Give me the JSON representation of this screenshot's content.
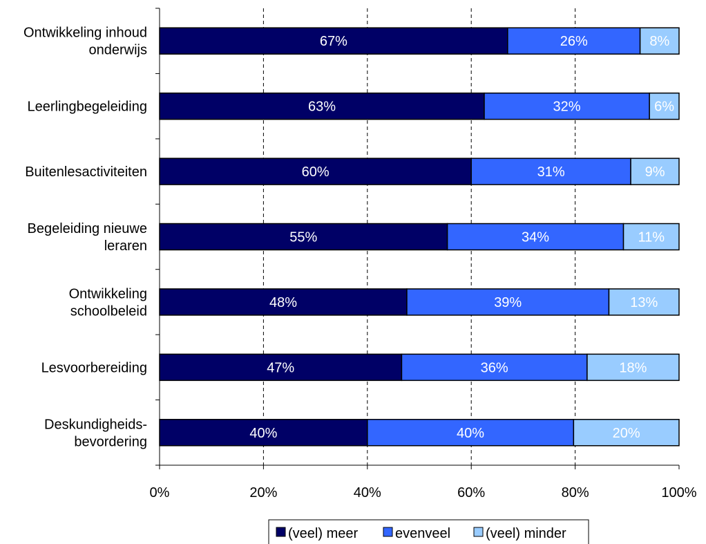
{
  "chart_data": {
    "type": "bar",
    "orientation": "horizontal",
    "stacked": "percent",
    "categories": [
      [
        "Ontwikkeling inhoud",
        "onderwijs"
      ],
      [
        "Leerlingbegeleiding"
      ],
      [
        "Buitenlesactiviteiten"
      ],
      [
        "Begeleiding nieuwe",
        "leraren"
      ],
      [
        "Ontwikkeling",
        "schoolbeleid"
      ],
      [
        "Lesvoorbereiding"
      ],
      [
        "Deskundigheids-",
        "bevordering"
      ]
    ],
    "series": [
      {
        "name": "(veel) meer",
        "color": "#000066",
        "values": [
          67,
          63,
          60,
          55,
          48,
          47,
          40
        ]
      },
      {
        "name": "evenveel",
        "color": "#3366FF",
        "values": [
          26,
          32,
          31,
          34,
          39,
          36,
          40
        ]
      },
      {
        "name": "(veel) minder",
        "color": "#99CCFF",
        "values": [
          8,
          6,
          9,
          11,
          13,
          18,
          20
        ]
      }
    ],
    "bar_ends": [
      [
        67,
        92.5,
        100
      ],
      [
        62.5,
        94.3,
        100
      ],
      [
        60,
        90.7,
        100
      ],
      [
        55.4,
        89.3,
        100
      ],
      [
        47.6,
        86.5,
        100
      ],
      [
        46.6,
        82.3,
        100
      ],
      [
        40,
        79.7,
        100
      ]
    ],
    "data_label_suffix": "%",
    "xlim": [
      0,
      100
    ],
    "xticks": [
      "0%",
      "20%",
      "40%",
      "60%",
      "80%",
      "100%"
    ],
    "grid": "vertical-dashed",
    "legend_position": "bottom",
    "title": "",
    "xlabel": "",
    "ylabel": ""
  }
}
